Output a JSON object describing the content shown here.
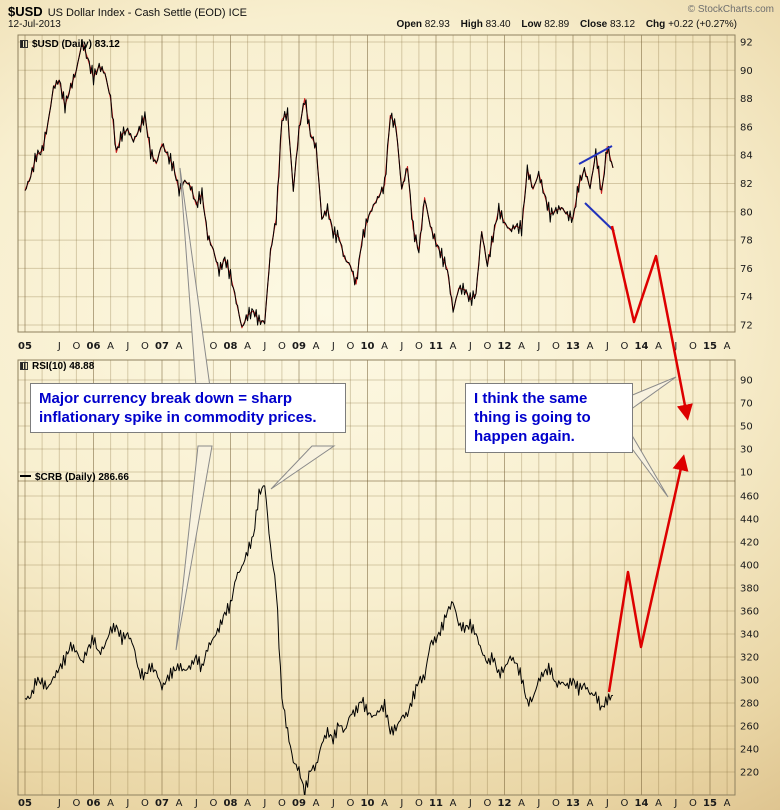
{
  "header": {
    "symbol": "$USD",
    "title": "US Dollar Index - Cash Settle (EOD) ICE",
    "copyright": "© StockCharts.com",
    "date": "12-Jul-2013",
    "ohlc": [
      {
        "label": "Open",
        "value": "82.93"
      },
      {
        "label": "High",
        "value": "83.40"
      },
      {
        "label": "Low",
        "value": "82.89"
      },
      {
        "label": "Close",
        "value": "83.12"
      },
      {
        "label": "Chg",
        "value": "+0.22 (+0.27%)"
      }
    ]
  },
  "panels": {
    "usd": {
      "label": "$USD (Daily) 83.12",
      "icon": "candlestick-chart-icon"
    },
    "rsi": {
      "label": "RSI(10) 48.88",
      "icon": "indicator-icon"
    },
    "crb": {
      "label": "$CRB (Daily) 286.66",
      "icon": "line-legend-icon"
    }
  },
  "callouts": [
    {
      "text": "Major currency break down = sharp inflationary spike in commodity prices."
    },
    {
      "text": "I think the same thing is going to happen again."
    }
  ],
  "colors": {
    "arrow_red": "#dd0000",
    "annotation_blue": "#2233bb",
    "callout_text_blue": "#0000cc",
    "price_line": "#000000",
    "ma_line": "#cc2222"
  },
  "chart_data": [
    {
      "type": "line",
      "name": "$USD (Daily)",
      "last_value": 83.12,
      "x_unit": "year",
      "x_start": 2005.0,
      "x_step": 0.0833333,
      "ylim": [
        71.5,
        92.5
      ],
      "y_ticks": [
        92,
        90,
        88,
        86,
        84,
        82,
        80,
        78,
        76,
        74,
        72
      ],
      "x_ticks": [
        [
          2005,
          "05"
        ],
        [
          2005.5,
          "J"
        ],
        [
          2005.75,
          "O"
        ],
        [
          2006,
          "06"
        ],
        [
          2006.25,
          "A"
        ],
        [
          2006.5,
          "J"
        ],
        [
          2006.75,
          "O"
        ],
        [
          2007,
          "07"
        ],
        [
          2007.25,
          "A"
        ],
        [
          2007.5,
          "J"
        ],
        [
          2007.75,
          "O"
        ],
        [
          2008,
          "08"
        ],
        [
          2008.25,
          "A"
        ],
        [
          2008.5,
          "J"
        ],
        [
          2008.75,
          "O"
        ],
        [
          2009,
          "09"
        ],
        [
          2009.25,
          "A"
        ],
        [
          2009.5,
          "J"
        ],
        [
          2009.75,
          "O"
        ],
        [
          2010,
          "10"
        ],
        [
          2010.25,
          "A"
        ],
        [
          2010.5,
          "J"
        ],
        [
          2010.75,
          "O"
        ],
        [
          2011,
          "11"
        ],
        [
          2011.25,
          "A"
        ],
        [
          2011.5,
          "J"
        ],
        [
          2011.75,
          "O"
        ],
        [
          2012,
          "12"
        ],
        [
          2012.25,
          "A"
        ],
        [
          2012.5,
          "J"
        ],
        [
          2012.75,
          "O"
        ],
        [
          2013,
          "13"
        ],
        [
          2013.25,
          "A"
        ],
        [
          2013.5,
          "J"
        ],
        [
          2013.75,
          "O"
        ],
        [
          2014,
          "14"
        ],
        [
          2014.25,
          "A"
        ],
        [
          2014.5,
          "J"
        ],
        [
          2014.75,
          "O"
        ],
        [
          2015,
          "15"
        ],
        [
          2015.25,
          "A"
        ]
      ],
      "values": [
        81.5,
        82.5,
        84,
        84.3,
        86.2,
        88.8,
        89.3,
        87.5,
        88.8,
        90,
        92,
        90.8,
        89.5,
        90.3,
        89.8,
        88,
        84.2,
        85.5,
        85.8,
        85,
        85.8,
        86.8,
        84.2,
        83.4,
        84.8,
        84,
        83.2,
        81.5,
        82.2,
        81.8,
        80.5,
        81.3,
        78.3,
        77.3,
        75.8,
        76.7,
        75.5,
        73.7,
        71.8,
        72.7,
        73,
        72.3,
        72.2,
        77.2,
        79.5,
        86.5,
        87,
        81.5,
        85.8,
        88,
        85.5,
        84.6,
        79.5,
        80.2,
        78.5,
        78.2,
        76.7,
        76.2,
        74.9,
        77.9,
        79.5,
        80.4,
        81.1,
        81.9,
        86.8,
        86,
        81.6,
        83.2,
        78.8,
        77.2,
        81,
        79,
        77.8,
        76.9,
        75.9,
        73,
        74.6,
        74.5,
        73.8,
        74.2,
        78.6,
        76.2,
        78.3,
        80.2,
        79.2,
        78.7,
        79,
        78.8,
        83,
        81.6,
        82.7,
        81.2,
        79.8,
        80.1,
        80.3,
        79.8,
        79.5,
        81.9,
        83,
        81.7,
        84.2,
        81.3,
        84.6,
        83.1
      ]
    },
    {
      "type": "line",
      "name": "RSI(10)",
      "last_value": 48.88,
      "y_ticks": [
        90,
        70,
        50,
        30,
        10
      ],
      "values": []
    },
    {
      "type": "line",
      "name": "$CRB (Daily)",
      "last_value": 286.66,
      "x_unit": "year",
      "x_start": 2005.0,
      "x_step": 0.0833333,
      "ylim": [
        200,
        470
      ],
      "y_ticks": [
        460,
        440,
        420,
        400,
        380,
        360,
        340,
        320,
        300,
        280,
        260,
        240,
        220
      ],
      "values": [
        284,
        285,
        300,
        298,
        293,
        302,
        310,
        318,
        330,
        325,
        315,
        327,
        336,
        323,
        330,
        344,
        346,
        336,
        340,
        330,
        306,
        304,
        312,
        307,
        293,
        302,
        308,
        312,
        308,
        312,
        320,
        310,
        328,
        336,
        345,
        358,
        365,
        390,
        398,
        412,
        425,
        462,
        470,
        415,
        380,
        285,
        255,
        229,
        222,
        202,
        222,
        225,
        245,
        255,
        248,
        262,
        255,
        270,
        273,
        283,
        272,
        268,
        273,
        278,
        255,
        258,
        268,
        270,
        285,
        300,
        302,
        332,
        335,
        345,
        360,
        368,
        348,
        345,
        348,
        340,
        325,
        315,
        320,
        305,
        310,
        320,
        315,
        302,
        280,
        284,
        300,
        307,
        310,
        296,
        298,
        295,
        300,
        292,
        296,
        288,
        287,
        275,
        283,
        286.7
      ]
    }
  ],
  "annotations": {
    "red_arrows": [
      {
        "name": "usd-projection-arrow",
        "points": [
          [
            612,
            226
          ],
          [
            634,
            322
          ],
          [
            656,
            256
          ],
          [
            687,
            416
          ]
        ]
      },
      {
        "name": "crb-projection-arrow",
        "points": [
          [
            609,
            692
          ],
          [
            628,
            572
          ],
          [
            641,
            647
          ],
          [
            683,
            459
          ]
        ]
      }
    ],
    "blue_lines": [
      [
        [
          579,
          164
        ],
        [
          612,
          146
        ]
      ],
      [
        [
          585,
          203
        ],
        [
          614,
          231
        ]
      ]
    ],
    "callout_tails": [
      [
        [
          180,
          168
        ],
        [
          196,
          387
        ],
        [
          210,
          387
        ]
      ],
      [
        [
          176,
          650
        ],
        [
          198,
          446
        ],
        [
          212,
          446
        ]
      ],
      [
        [
          271,
          489
        ],
        [
          312,
          446
        ],
        [
          334,
          446
        ]
      ],
      [
        [
          676,
          377
        ],
        [
          630,
          396
        ],
        [
          630,
          410
        ]
      ],
      [
        [
          668,
          497
        ],
        [
          630,
          432
        ],
        [
          630,
          446
        ]
      ]
    ]
  }
}
